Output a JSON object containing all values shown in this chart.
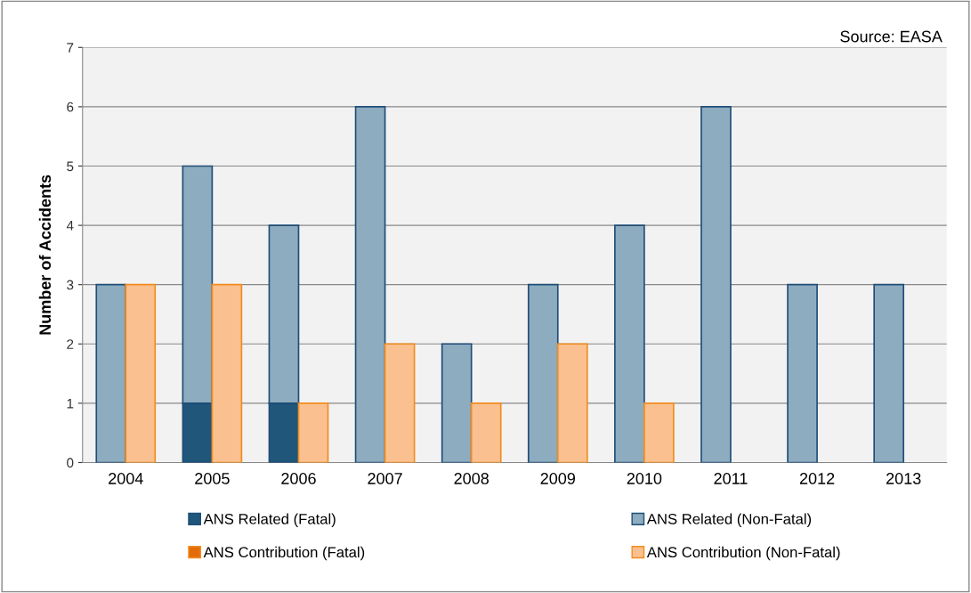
{
  "chart_data": {
    "type": "bar",
    "ylabel": "Number of Accidents",
    "categories": [
      "2004",
      "2005",
      "2006",
      "2007",
      "2008",
      "2009",
      "2010",
      "2011",
      "2012",
      "2013"
    ],
    "series": [
      {
        "name": "ANS Related (Fatal)",
        "color": "#1f567a",
        "values": [
          0,
          1,
          1,
          0,
          0,
          0,
          0,
          0,
          0,
          0
        ]
      },
      {
        "name": "ANS Related (Non-Fatal)",
        "color": "#8eacbf",
        "base": [
          0,
          1,
          1,
          0,
          0,
          0,
          0,
          0,
          0,
          0
        ],
        "values": [
          3,
          4,
          3,
          6,
          2,
          3,
          4,
          6,
          3,
          3
        ]
      },
      {
        "name": "ANS Contribution (Fatal)",
        "color": "#e36c09",
        "values": [
          0,
          0,
          0,
          0,
          0,
          0,
          0,
          0,
          0,
          0
        ]
      },
      {
        "name": "ANS Contribution (Non-Fatal)",
        "color": "#fac090",
        "base": [
          0,
          0,
          0,
          0,
          0,
          0,
          0,
          null,
          null,
          null
        ],
        "values": [
          3,
          3,
          1,
          2,
          1,
          2,
          1,
          0,
          0,
          0
        ]
      }
    ],
    "ylim": [
      0,
      7
    ],
    "yticks": [
      0,
      1,
      2,
      3,
      4,
      5,
      6,
      7
    ],
    "grid": "y",
    "legend": "bottom",
    "annotations": [
      "Source: EASA"
    ]
  }
}
